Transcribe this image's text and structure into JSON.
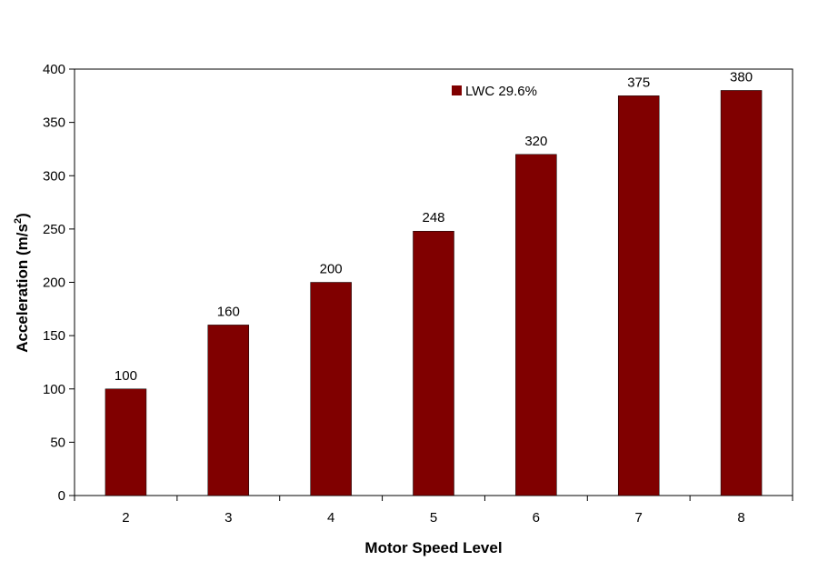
{
  "chart_data": {
    "type": "bar",
    "categories": [
      "2",
      "3",
      "4",
      "5",
      "6",
      "7",
      "8"
    ],
    "series": [
      {
        "name": "LWC 29.6%",
        "values": [
          100,
          160,
          200,
          248,
          320,
          375,
          380
        ],
        "color": "#800000"
      }
    ],
    "data_labels": [
      "100",
      "160",
      "200",
      "248",
      "320",
      "375",
      "380"
    ],
    "xlabel": "Motor Speed Level",
    "ylabel_main": "Acceleration (m/s",
    "ylabel_sup": "2",
    "ylabel_close": ")",
    "ylim": [
      0,
      400
    ],
    "yticks": [
      0,
      50,
      100,
      150,
      200,
      250,
      300,
      350,
      400
    ],
    "ytick_labels": [
      "0",
      "50",
      "100",
      "150",
      "200",
      "250",
      "300",
      "350",
      "400"
    ],
    "grid": false,
    "legend_position": "top-right"
  }
}
